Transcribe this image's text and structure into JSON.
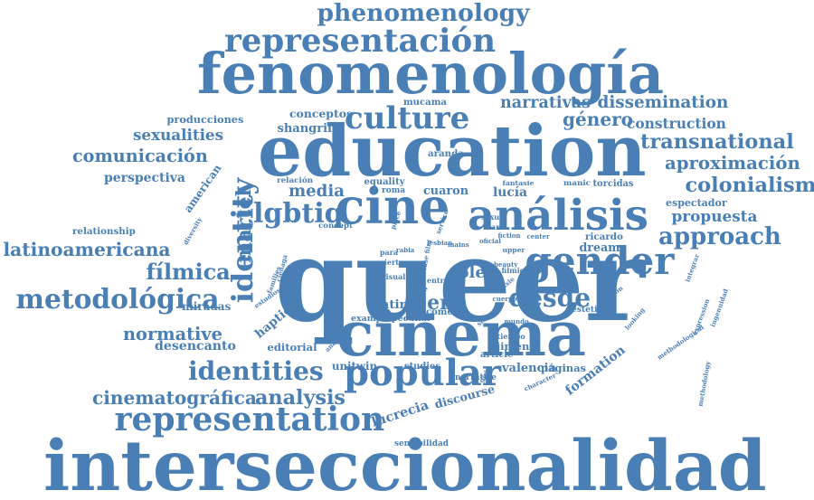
{
  "colors": {
    "word": "#4a7fb5",
    "background": "#ffffff"
  },
  "words": [
    "interseccionalidad",
    "queer",
    "education",
    "fenomenología",
    "cinema",
    "cine",
    "análisis",
    "formation",
    "identity",
    "gender",
    "popular",
    "methodological",
    "representación",
    "phenomenology",
    "representation",
    "identities",
    "american",
    "culture",
    "lucrecia",
    "martel",
    "lgbtiq",
    "dissemination",
    "metodológica",
    "transnational",
    "aproximación",
    "colonialism",
    "approach",
    "desde",
    "haptic",
    "media",
    "narrativas",
    "discourse",
    "teen",
    "analysis",
    "latinoamericana",
    "cinematográfica",
    "normative",
    "fílmica",
    "lucía",
    "género",
    "comunicación",
    "sexualities",
    "perspectiva",
    "producciones",
    "construction",
    "propuesta",
    "desencanto",
    "diversity",
    "cuaron",
    "conceptos",
    "shangrila",
    "mucama",
    "manic",
    "torcidas",
    "espectador",
    "relationship",
    "miradas",
    "estudios",
    "latin",
    "role",
    "dream",
    "ricardo",
    "valencia",
    "páginas",
    "sensibilidad",
    "unitwin",
    "studies",
    "editorial",
    "integrar",
    "expression",
    "ingenuidad",
    "methodology",
    "aranda",
    "equality",
    "roma",
    "domestic",
    "estética",
    "cuarón",
    "looking",
    "pixie",
    "slow",
    "article",
    "character",
    "narrative",
    "jimeno",
    "tiempo",
    "como",
    "peculiar",
    "example",
    "analyze",
    "families",
    "ciénaga",
    "relación",
    "concept",
    "place",
    "girl",
    "cierta",
    "fantasie",
    "sexual",
    "mark",
    "service",
    "case film",
    "rabia",
    "visual",
    "entre",
    "nature",
    "upper",
    "center",
    "filmic",
    "beauty",
    "mains",
    "lesbian",
    "para",
    "clase",
    "cuerpo",
    "mundo",
    "fiction",
    "oficial"
  ]
}
